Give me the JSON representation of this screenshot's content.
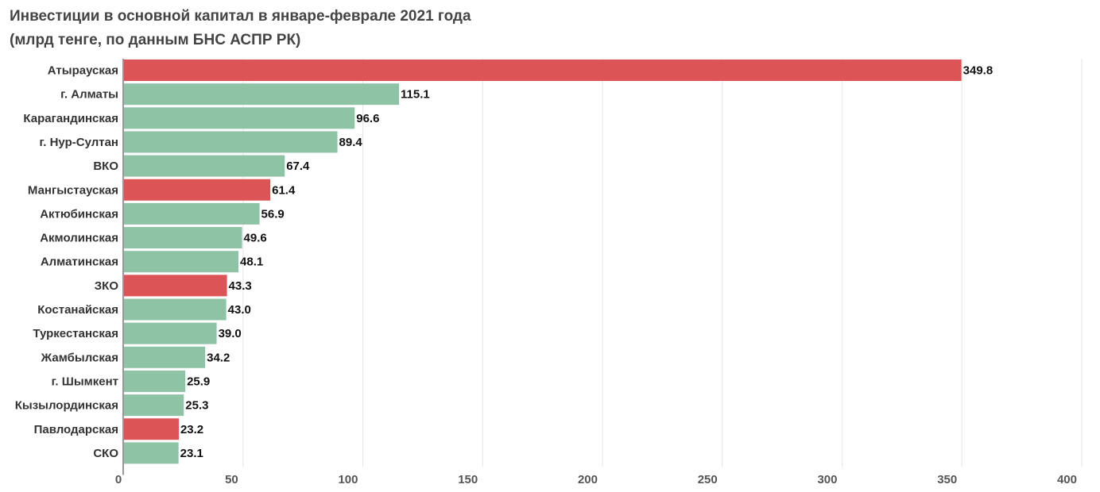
{
  "chart_data": {
    "type": "bar",
    "orientation": "horizontal",
    "title": "Инвестиции в основной капитал в январе-феврале 2021 года",
    "subtitle": "(млрд тенге, по данным БНС АСПР РК)",
    "xlabel": "",
    "ylabel": "",
    "xlim": [
      0,
      400
    ],
    "xticks": [
      0,
      50,
      100,
      150,
      200,
      250,
      300,
      350,
      400
    ],
    "grid": "vertical",
    "legend": "none",
    "colors": {
      "highlight": "#dc5456",
      "default": "#8fc3a6",
      "grid": "#e6e6e6",
      "axis": "#555555"
    },
    "categories": [
      "Атырауская",
      "г. Алматы",
      "Карагандинская",
      "г. Нур-Султан",
      "ВКО",
      "Мангыстауская",
      "Актюбинская",
      "Акмолинская",
      "Алматинская",
      "ЗКО",
      "Костанайская",
      "Туркестанская",
      "Жамбылская",
      "г. Шымкент",
      "Кызылординская",
      "Павлодарская",
      "СКО"
    ],
    "values": [
      349.8,
      115.1,
      96.6,
      89.4,
      67.4,
      61.4,
      56.9,
      49.6,
      48.1,
      43.3,
      43.0,
      39.0,
      34.2,
      25.9,
      25.3,
      23.2,
      23.1
    ],
    "value_labels": [
      "349.8",
      "115.1",
      "96.6",
      "89.4",
      "67.4",
      "61.4",
      "56.9",
      "49.6",
      "48.1",
      "43.3",
      "43.0",
      "39.0",
      "34.2",
      "25.9",
      "25.3",
      "23.2",
      "23.1"
    ],
    "highlighted": [
      true,
      false,
      false,
      false,
      false,
      true,
      false,
      false,
      false,
      true,
      false,
      false,
      false,
      false,
      false,
      true,
      false
    ]
  }
}
